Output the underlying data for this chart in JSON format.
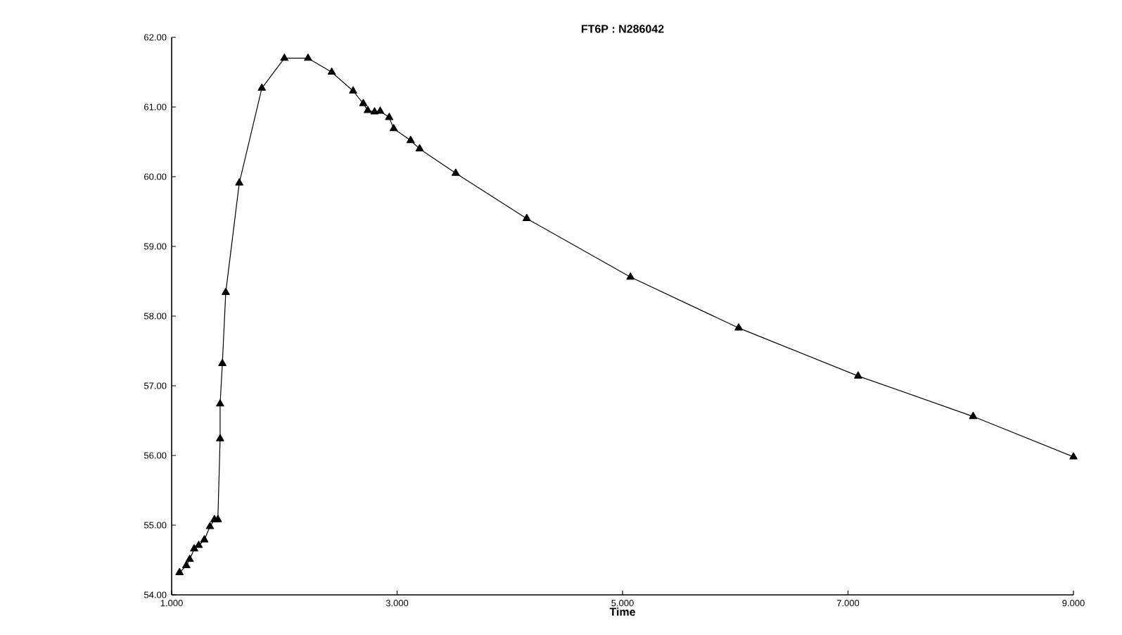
{
  "chart_data": {
    "type": "line",
    "title": "FT6P : N286042",
    "xlabel": "Time",
    "x": [
      1.07,
      1.13,
      1.16,
      1.2,
      1.24,
      1.29,
      1.34,
      1.38,
      1.41,
      1.43,
      1.43,
      1.45,
      1.48,
      1.6,
      1.8,
      2.0,
      2.21,
      2.42,
      2.61,
      2.7,
      2.74,
      2.8,
      2.85,
      2.93,
      2.97,
      3.12,
      3.2,
      3.52,
      4.15,
      5.07,
      6.03,
      7.09,
      8.11,
      9.0
    ],
    "values": [
      54.32,
      54.42,
      54.51,
      54.66,
      54.71,
      54.79,
      54.98,
      55.08,
      55.08,
      56.24,
      56.74,
      57.32,
      58.34,
      59.91,
      61.27,
      61.7,
      61.7,
      61.5,
      61.23,
      61.05,
      60.95,
      60.93,
      60.94,
      60.85,
      60.69,
      60.52,
      60.4,
      60.05,
      59.4,
      58.56,
      57.83,
      57.14,
      56.56,
      55.98
    ],
    "color": "#000000",
    "marker": "triangle",
    "line_style": "solid",
    "grid": false,
    "xlim": [
      1,
      9
    ],
    "ylim": [
      54,
      62
    ],
    "xticks": [
      {
        "value": 1,
        "label": "1.000"
      },
      {
        "value": 3,
        "label": "3.000"
      },
      {
        "value": 5,
        "label": "5.000"
      },
      {
        "value": 7,
        "label": "7.000"
      },
      {
        "value": 9,
        "label": "9.000"
      }
    ],
    "yticks": [
      {
        "value": 54,
        "label": "54.00"
      },
      {
        "value": 55,
        "label": "55.00"
      },
      {
        "value": 56,
        "label": "56.00"
      },
      {
        "value": 57,
        "label": "57.00"
      },
      {
        "value": 58,
        "label": "58.00"
      },
      {
        "value": 59,
        "label": "59.00"
      },
      {
        "value": 60,
        "label": "60.00"
      },
      {
        "value": 61,
        "label": "61.00"
      },
      {
        "value": 62,
        "label": "62.00"
      }
    ]
  }
}
